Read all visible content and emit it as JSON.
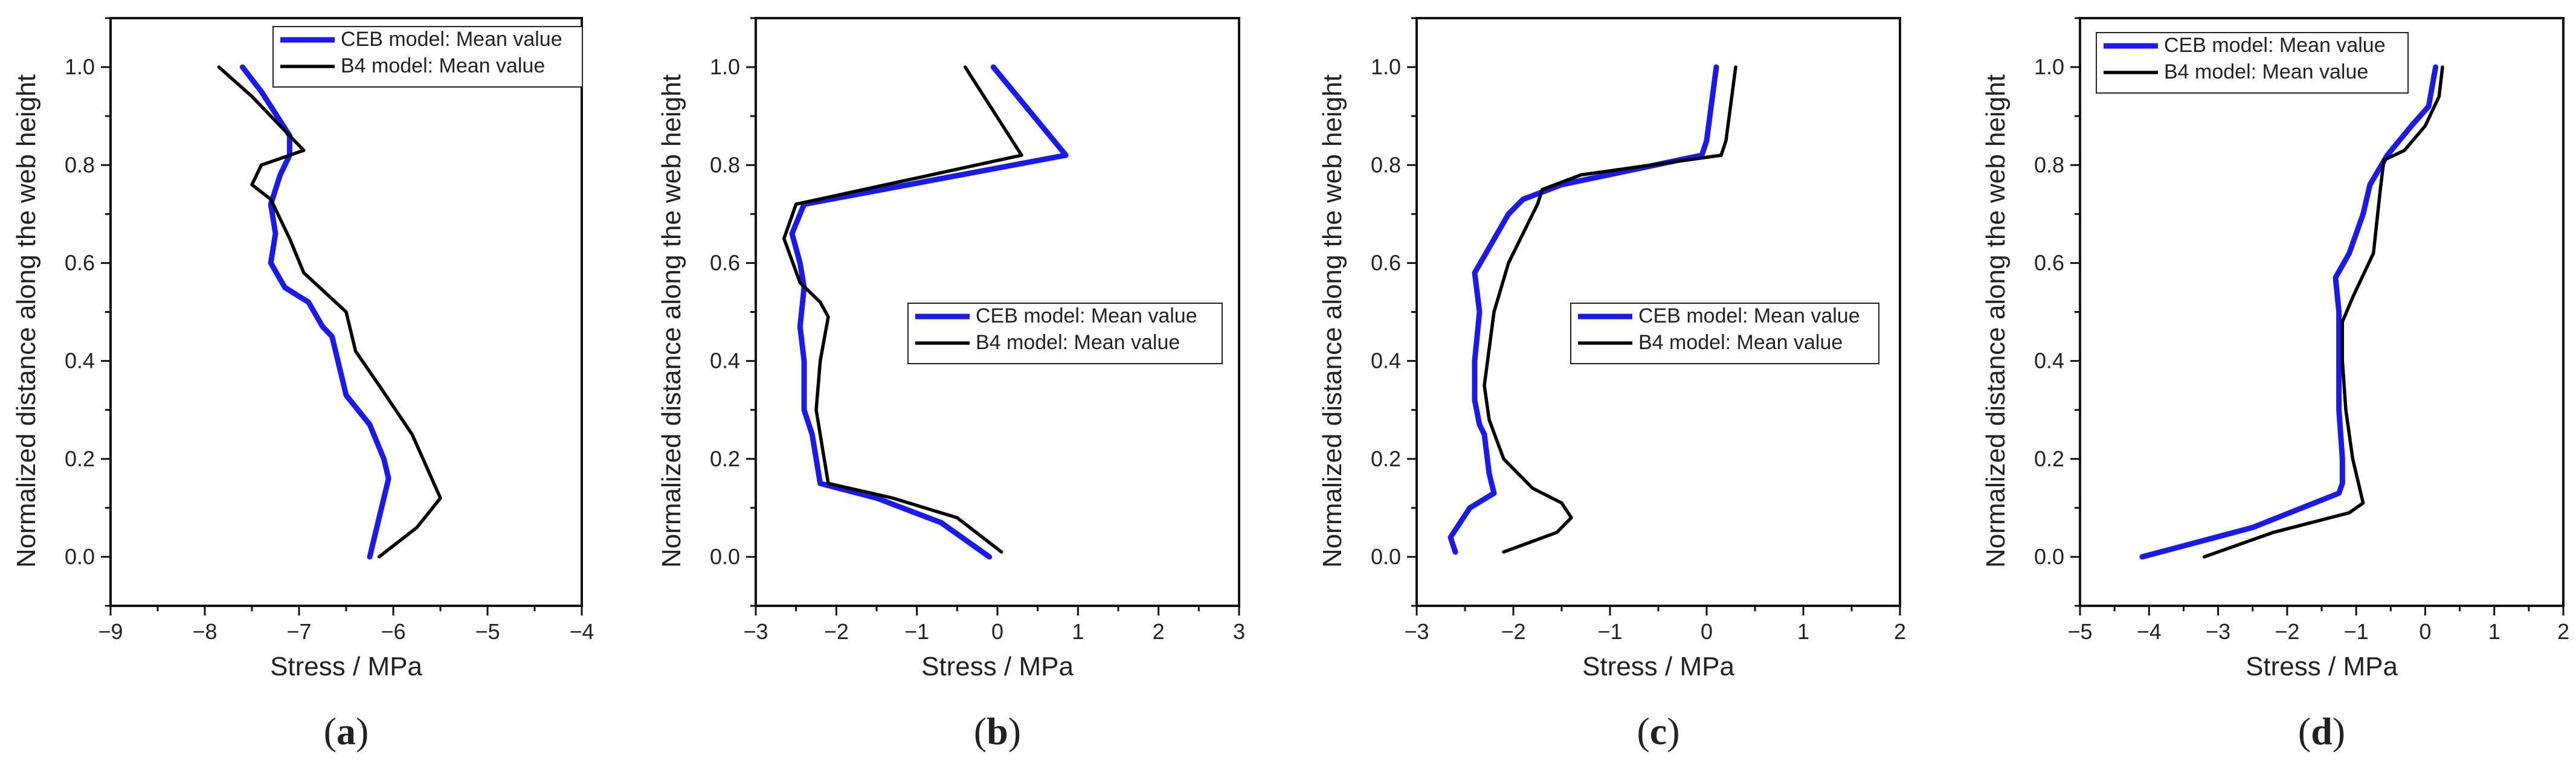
{
  "colors": {
    "cebSeries": "#1a1aee",
    "b4Series": "#000000",
    "axis": "#111111",
    "background": "#ffffff"
  },
  "chart_data": [
    {
      "id": "a",
      "type": "line",
      "panel_label": {
        "open": "(",
        "letter": "a",
        "close": ")"
      },
      "xlabel": "Stress /  MPa",
      "ylabel": "Normalized distance along the web height",
      "xlim": [
        -9,
        -4
      ],
      "ylim": [
        -0.1,
        1.1
      ],
      "xticks": [
        -9,
        -8,
        -7,
        -6,
        -5,
        -4
      ],
      "yticks": [
        "0.0",
        "0.2",
        "0.4",
        "0.6",
        "0.8",
        "1.0"
      ],
      "legend_position": "top-right",
      "series": [
        {
          "name": "CEB model: Mean value",
          "color": "#1a1aee",
          "x": [
            -7.6,
            -7.4,
            -7.1,
            -7.1,
            -7.2,
            -7.3,
            -7.25,
            -7.3,
            -7.15,
            -6.9,
            -6.75,
            -6.65,
            -6.5,
            -6.25,
            -6.1,
            -6.05,
            -6.15,
            -6.25
          ],
          "y": [
            1.0,
            0.95,
            0.86,
            0.82,
            0.78,
            0.72,
            0.66,
            0.6,
            0.55,
            0.52,
            0.47,
            0.45,
            0.33,
            0.27,
            0.2,
            0.16,
            0.08,
            0.0
          ]
        },
        {
          "name": "B4 model:  Mean value",
          "color": "#000000",
          "x": [
            -7.85,
            -7.5,
            -7.2,
            -6.95,
            -7.4,
            -7.5,
            -7.3,
            -7.1,
            -6.95,
            -6.5,
            -6.4,
            -6.15,
            -5.8,
            -5.5,
            -5.75,
            -6.15
          ],
          "y": [
            1.0,
            0.94,
            0.88,
            0.83,
            0.8,
            0.76,
            0.73,
            0.65,
            0.58,
            0.5,
            0.42,
            0.35,
            0.25,
            0.12,
            0.06,
            0.0
          ]
        }
      ]
    },
    {
      "id": "b",
      "type": "line",
      "panel_label": {
        "open": "(",
        "letter": "b",
        "close": ")"
      },
      "xlabel": "Stress /  MPa",
      "ylabel": "Normalized distance along the web height",
      "xlim": [
        -3,
        3
      ],
      "ylim": [
        -0.1,
        1.1
      ],
      "xticks": [
        -3,
        -2,
        -1,
        0,
        1,
        2,
        3
      ],
      "yticks": [
        "0.0",
        "0.2",
        "0.4",
        "0.6",
        "0.8",
        "1.0"
      ],
      "legend_position": "middle-right",
      "series": [
        {
          "name": "CEB model: Mean value",
          "color": "#1a1aee",
          "x": [
            -0.05,
            0.8,
            0.85,
            -2.4,
            -2.55,
            -2.45,
            -2.4,
            -2.45,
            -2.4,
            -2.4,
            -2.3,
            -2.2,
            -1.5,
            -0.7,
            -0.1
          ],
          "y": [
            1.0,
            0.83,
            0.82,
            0.72,
            0.66,
            0.6,
            0.55,
            0.47,
            0.4,
            0.3,
            0.25,
            0.15,
            0.12,
            0.07,
            0.0
          ]
        },
        {
          "name": "B4 model:  Mean value",
          "color": "#000000",
          "x": [
            -0.4,
            0.3,
            -2.5,
            -2.65,
            -2.45,
            -2.2,
            -2.1,
            -2.2,
            -2.25,
            -2.1,
            -1.3,
            -0.5,
            0.05
          ],
          "y": [
            1.0,
            0.82,
            0.72,
            0.65,
            0.56,
            0.52,
            0.49,
            0.4,
            0.3,
            0.15,
            0.12,
            0.08,
            0.01
          ]
        }
      ]
    },
    {
      "id": "c",
      "type": "line",
      "panel_label": {
        "open": "(",
        "letter": "c",
        "close": ")"
      },
      "xlabel": "Stress /  MPa",
      "ylabel": "Normalized distance along the web height",
      "xlim": [
        -3,
        2
      ],
      "ylim": [
        -0.1,
        1.1
      ],
      "xticks": [
        -3,
        -2,
        -1,
        0,
        1,
        2
      ],
      "yticks": [
        "0.0",
        "0.2",
        "0.4",
        "0.6",
        "0.8",
        "1.0"
      ],
      "legend_position": "middle-right",
      "series": [
        {
          "name": "CEB model: Mean value",
          "color": "#1a1aee",
          "x": [
            0.1,
            0.0,
            -0.05,
            -1.5,
            -1.9,
            -2.05,
            -2.4,
            -2.35,
            -2.4,
            -2.4,
            -2.35,
            -2.3,
            -2.25,
            -2.2,
            -2.45,
            -2.65,
            -2.6
          ],
          "y": [
            1.0,
            0.85,
            0.82,
            0.76,
            0.73,
            0.7,
            0.58,
            0.5,
            0.4,
            0.32,
            0.27,
            0.25,
            0.17,
            0.13,
            0.1,
            0.04,
            0.01
          ]
        },
        {
          "name": "B4 model:  Mean value",
          "color": "#000000",
          "x": [
            0.3,
            0.2,
            0.15,
            -1.3,
            -1.7,
            -1.75,
            -2.05,
            -2.2,
            -2.3,
            -2.25,
            -2.1,
            -1.8,
            -1.5,
            -1.4,
            -1.55,
            -2.1
          ],
          "y": [
            1.0,
            0.85,
            0.82,
            0.78,
            0.75,
            0.72,
            0.6,
            0.5,
            0.35,
            0.28,
            0.2,
            0.14,
            0.11,
            0.08,
            0.05,
            0.01
          ]
        }
      ]
    },
    {
      "id": "d",
      "type": "line",
      "panel_label": {
        "open": "(",
        "letter": "d",
        "close": ")"
      },
      "xlabel": "Stress /  MPa",
      "ylabel": "Normalized distance along the web height",
      "xlim": [
        -5,
        2
      ],
      "ylim": [
        -0.1,
        1.1
      ],
      "xticks": [
        -5,
        -4,
        -3,
        -2,
        -1,
        0,
        1,
        2
      ],
      "yticks": [
        "0.0",
        "0.2",
        "0.4",
        "0.6",
        "0.8",
        "1.0"
      ],
      "legend_position": "top-left",
      "series": [
        {
          "name": "CEB model: Mean value",
          "color": "#1a1aee",
          "x": [
            0.15,
            0.05,
            -0.2,
            -0.55,
            -0.8,
            -0.9,
            -1.1,
            -1.3,
            -1.25,
            -1.25,
            -1.25,
            -1.2,
            -1.2,
            -1.25,
            -2.5,
            -4.1
          ],
          "y": [
            1.0,
            0.92,
            0.88,
            0.82,
            0.76,
            0.7,
            0.62,
            0.57,
            0.5,
            0.4,
            0.3,
            0.2,
            0.15,
            0.13,
            0.06,
            0.0
          ]
        },
        {
          "name": "B4 model:  Mean value",
          "color": "#000000",
          "x": [
            0.25,
            0.2,
            0.0,
            -0.3,
            -0.6,
            -0.65,
            -0.75,
            -1.05,
            -1.2,
            -1.2,
            -1.15,
            -1.05,
            -0.95,
            -0.9,
            -1.1,
            -2.2,
            -3.2
          ],
          "y": [
            1.0,
            0.94,
            0.88,
            0.83,
            0.81,
            0.75,
            0.62,
            0.53,
            0.48,
            0.4,
            0.3,
            0.2,
            0.14,
            0.11,
            0.09,
            0.05,
            0.0
          ]
        }
      ]
    }
  ]
}
